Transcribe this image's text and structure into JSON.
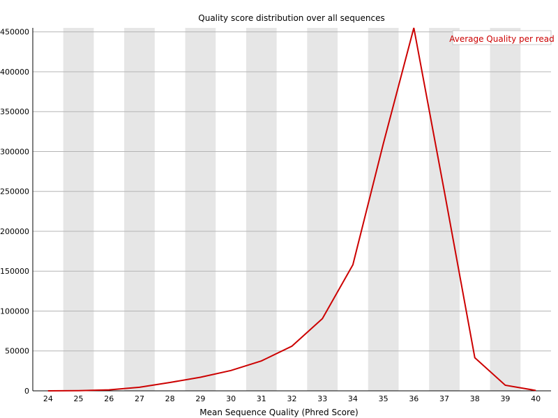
{
  "chart_data": {
    "type": "line",
    "title": "Quality score distribution over all sequences",
    "xlabel": "Mean Sequence Quality (Phred Score)",
    "ylabel": "",
    "x": [
      24,
      25,
      26,
      27,
      28,
      29,
      30,
      31,
      32,
      33,
      34,
      35,
      36,
      37,
      38,
      39,
      40
    ],
    "x_tick_labels": [
      "24",
      "25",
      "26",
      "27",
      "28",
      "29",
      "30",
      "31",
      "32",
      "33",
      "34",
      "35",
      "36",
      "37",
      "38",
      "39",
      "40"
    ],
    "y_ticks": [
      0,
      50000,
      100000,
      150000,
      200000,
      250000,
      300000,
      350000,
      400000,
      450000
    ],
    "y_tick_labels": [
      "0",
      "50000",
      "100000",
      "150000",
      "200000",
      "250000",
      "300000",
      "350000",
      "400000",
      "450000"
    ],
    "ylim": [
      0,
      455000
    ],
    "xlim": [
      23.5,
      40.5
    ],
    "grid": true,
    "alternating_bands": true,
    "legend_position": "top-right",
    "series": [
      {
        "name": "Average Quality per read",
        "color": "#cc0000",
        "values": [
          0,
          200,
          1200,
          4500,
          10500,
          17000,
          25500,
          37500,
          56000,
          90500,
          158000,
          310000,
          455000,
          250000,
          41500,
          7000,
          500
        ]
      }
    ],
    "colors": {
      "band": "#e6e6e6",
      "grid": "#b4b4b4",
      "axis": "#000000",
      "legend_border": "#c8c8c8"
    }
  }
}
